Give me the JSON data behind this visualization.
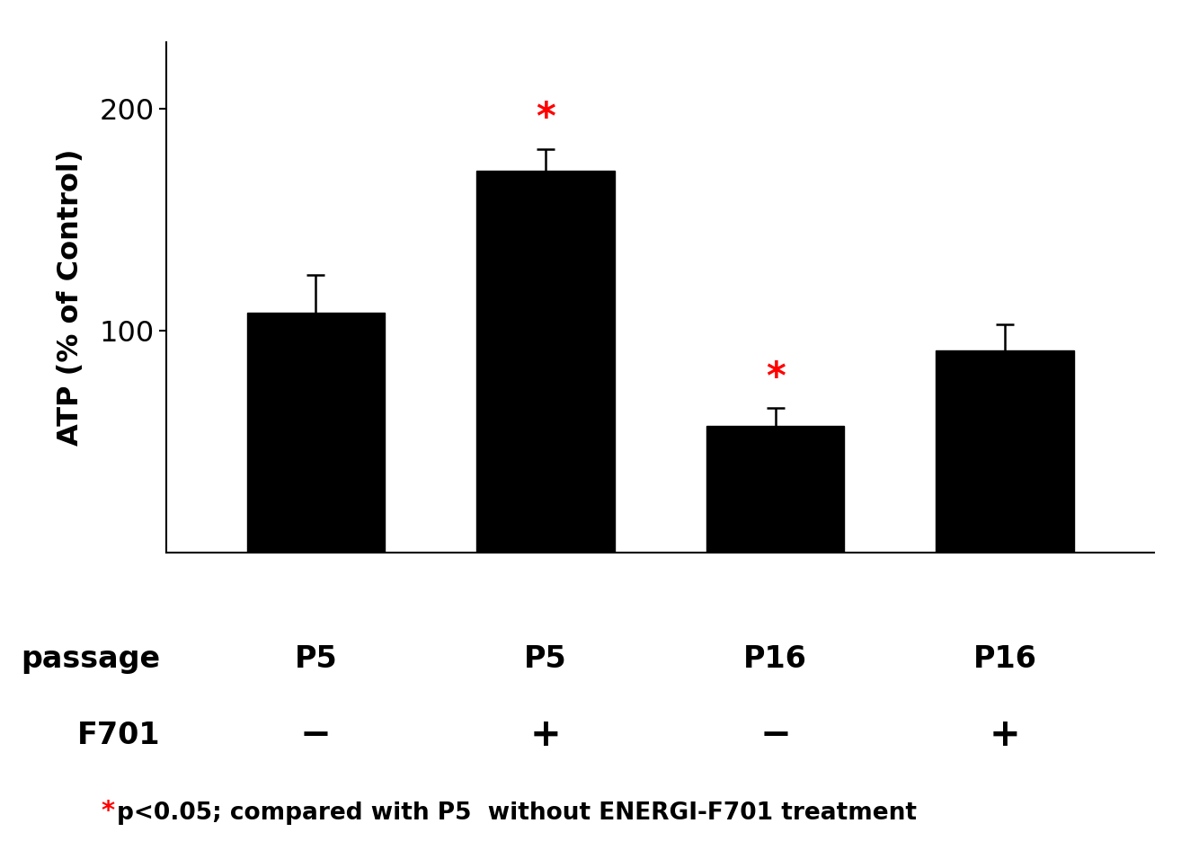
{
  "passage_labels": [
    "P5",
    "P5",
    "P16",
    "P16"
  ],
  "f701_labels": [
    "−",
    "+",
    "−",
    "+"
  ],
  "values": [
    108,
    172,
    57,
    91
  ],
  "errors": [
    17,
    10,
    8,
    12
  ],
  "bar_color": "#000000",
  "ylabel": "ATP (% of Control)",
  "ylim": [
    0,
    230
  ],
  "yticks": [
    100,
    200
  ],
  "significance": [
    false,
    true,
    true,
    false
  ],
  "sig_color": "#ff0000",
  "sig_symbol": "*",
  "footnote_star_color": "#ff0000",
  "footnote_text": "p<0.05; compared with P5  without ENERGI-F701 treatment",
  "bar_width": 0.6,
  "background_color": "#ffffff",
  "passage_row_label": "passage",
  "f701_row_label": "F701",
  "ylabel_fontsize": 23,
  "tick_fontsize": 23,
  "label_fontsize": 24,
  "sig_fontsize": 30,
  "footnote_fontsize": 19
}
